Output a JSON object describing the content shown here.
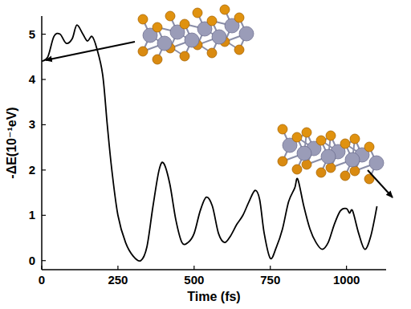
{
  "chart_data": {
    "type": "line",
    "x_label": "Time (fs)",
    "y_label": "-ΔE(10⁻¹eV)",
    "color": "#000000",
    "xlim": [
      0,
      1130
    ],
    "ylim": [
      -0.2,
      5.4
    ],
    "xticks": [
      0,
      250,
      500,
      750,
      1000
    ],
    "yticks": [
      0,
      1,
      2,
      3,
      4,
      5
    ],
    "grid": false,
    "x": [
      0,
      20,
      40,
      60,
      80,
      100,
      115,
      135,
      150,
      165,
      180,
      200,
      215,
      230,
      250,
      275,
      300,
      325,
      345,
      365,
      385,
      400,
      420,
      440,
      460,
      480,
      500,
      520,
      540,
      560,
      580,
      600,
      620,
      640,
      660,
      680,
      700,
      715,
      730,
      750,
      770,
      790,
      810,
      830,
      840,
      860,
      880,
      900,
      920,
      940,
      960,
      980,
      1000,
      1010,
      1020,
      1040,
      1060,
      1080,
      1100
    ],
    "values": [
      4.4,
      4.5,
      4.95,
      5.0,
      4.8,
      4.9,
      5.2,
      5.0,
      4.85,
      4.95,
      4.7,
      4.1,
      3.0,
      2.0,
      1.0,
      0.4,
      0.1,
      0.0,
      0.3,
      1.2,
      2.0,
      2.15,
      1.7,
      0.9,
      0.4,
      0.4,
      0.6,
      1.1,
      1.4,
      1.2,
      0.6,
      0.4,
      0.55,
      0.8,
      1.0,
      1.3,
      1.55,
      1.35,
      0.6,
      0.05,
      0.3,
      0.7,
      1.3,
      1.6,
      1.8,
      1.2,
      0.7,
      0.4,
      0.25,
      0.4,
      0.8,
      1.1,
      1.15,
      1.05,
      1.1,
      0.6,
      0.25,
      0.55,
      1.2
    ]
  }
}
